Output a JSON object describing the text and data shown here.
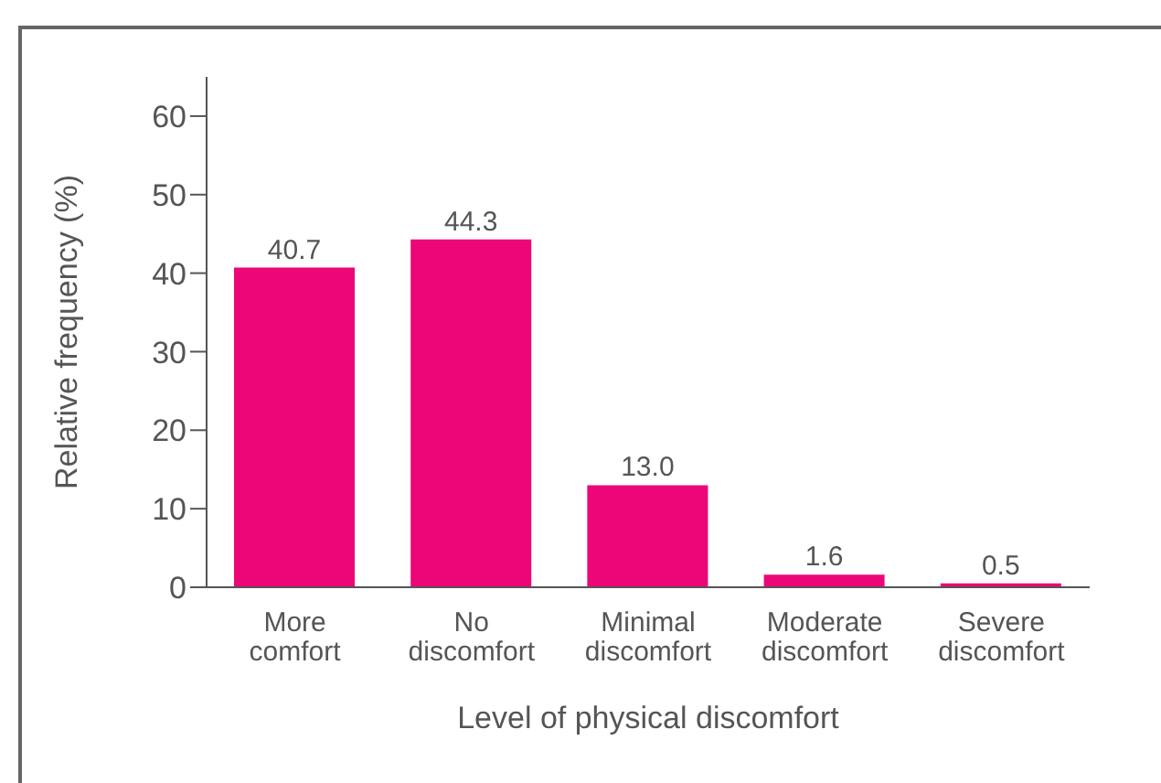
{
  "chart_data": {
    "type": "bar",
    "xlabel": "Level of physical discomfort",
    "ylabel": "Relative frequency (%)",
    "categories": [
      "More comfort",
      "No discomfort",
      "Minimal discomfort",
      "Moderate discomfort",
      "Severe discomfort"
    ],
    "values": [
      40.7,
      44.3,
      13.0,
      1.6,
      0.5
    ],
    "value_labels": [
      "40.7",
      "44.3",
      "13.0",
      "1.6",
      "0.5"
    ],
    "color": "#ec0677",
    "ylim": [
      0,
      65
    ],
    "yticks": [
      0,
      10,
      20,
      30,
      40,
      50,
      60
    ],
    "grid": false
  }
}
